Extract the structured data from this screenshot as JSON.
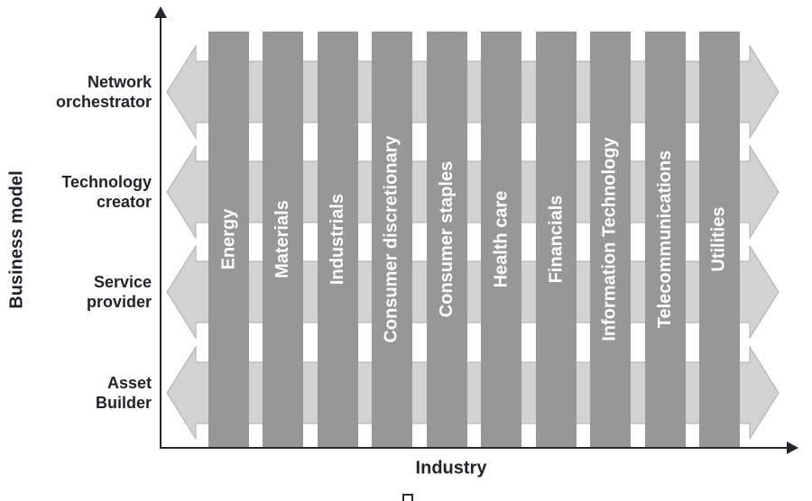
{
  "figure": {
    "y_axis": {
      "title": "Business model"
    },
    "x_axis": {
      "title": "Industry"
    },
    "business_models": [
      "Network\norchestrator",
      "Technology\ncreator",
      "Service\nprovider",
      "Asset\nBuilder"
    ],
    "industries": [
      "Energy",
      "Materials",
      "Industrials",
      "Consumer discretionary",
      "Consumer staples",
      "Health care",
      "Financials",
      "Information Technology",
      "Telecommunications",
      "Utilities"
    ],
    "colors": {
      "industry_bar": "#979797",
      "model_arrow": "#d2d2d2",
      "model_arrow_outline": "#aeaeae",
      "axis": "#26262e",
      "axis_text": "#21242c",
      "bar_text": "#ffffff"
    }
  }
}
